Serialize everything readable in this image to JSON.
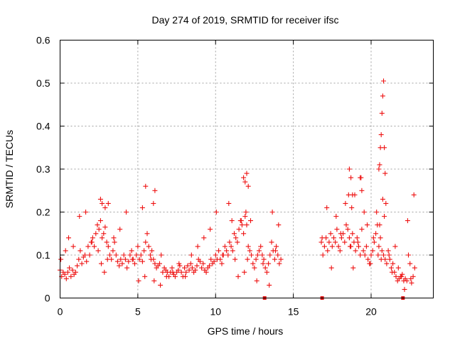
{
  "chart_data": {
    "type": "scatter",
    "title": "Day 274 of 2019, SRMTID for receiver ifsc",
    "xlabel": "GPS time / hours",
    "ylabel": "SRMTID / TECUs",
    "xlim": [
      0,
      24
    ],
    "ylim": [
      0,
      0.6
    ],
    "x_ticks": [
      0,
      5,
      10,
      15,
      20
    ],
    "y_ticks": [
      0,
      0.1,
      0.2,
      0.3,
      0.4,
      0.5,
      0.6
    ],
    "x_tick_labels": [
      "0",
      "5",
      "10",
      "15",
      "20"
    ],
    "y_tick_labels": [
      "0",
      "0.1",
      "0.2",
      "0.3",
      "0.4",
      "0.5",
      "0.6"
    ],
    "grid": true,
    "marker": "+",
    "color": "#ee1111",
    "series": [
      {
        "name": "SRMTID",
        "x": [
          0.0,
          0.1,
          0.2,
          0.3,
          0.4,
          0.5,
          0.6,
          0.7,
          0.8,
          0.9,
          1.0,
          1.1,
          1.2,
          1.3,
          1.4,
          1.5,
          1.6,
          1.7,
          1.8,
          1.9,
          2.0,
          2.1,
          2.2,
          2.3,
          2.4,
          2.5,
          2.6,
          2.7,
          2.8,
          2.9,
          3.0,
          3.1,
          3.2,
          3.3,
          3.4,
          3.5,
          3.6,
          3.7,
          3.8,
          3.9,
          4.0,
          4.1,
          4.2,
          4.3,
          4.4,
          4.5,
          4.6,
          4.7,
          4.8,
          4.9,
          5.0,
          5.1,
          5.2,
          5.3,
          5.4,
          5.5,
          5.6,
          5.7,
          5.8,
          5.9,
          6.0,
          6.1,
          6.2,
          6.3,
          6.4,
          6.5,
          6.6,
          6.7,
          6.8,
          6.9,
          7.0,
          7.1,
          7.2,
          7.3,
          7.4,
          7.5,
          7.6,
          7.7,
          7.8,
          7.9,
          8.0,
          8.1,
          8.2,
          8.3,
          8.4,
          8.5,
          8.6,
          8.7,
          8.8,
          8.9,
          9.0,
          9.1,
          9.2,
          9.3,
          9.4,
          9.5,
          9.6,
          9.7,
          9.8,
          9.9,
          10.0,
          10.1,
          10.2,
          10.3,
          10.4,
          10.5,
          10.6,
          10.7,
          10.8,
          10.9,
          11.0,
          11.1,
          11.2,
          11.3,
          11.4,
          11.5,
          11.6,
          11.7,
          11.8,
          11.9,
          12.0,
          12.1,
          12.2,
          12.3,
          12.4,
          12.5,
          12.6,
          12.7,
          12.8,
          12.9,
          13.0,
          13.1,
          13.2,
          13.3,
          13.4,
          13.5,
          13.6,
          13.7,
          13.8,
          13.9,
          14.0,
          14.1,
          14.2,
          16.8,
          16.9,
          17.0,
          17.1,
          17.2,
          17.3,
          17.4,
          17.5,
          17.6,
          17.7,
          17.8,
          17.9,
          18.0,
          18.1,
          18.2,
          18.3,
          18.4,
          18.5,
          18.6,
          18.7,
          18.8,
          18.9,
          19.0,
          19.1,
          19.2,
          19.3,
          19.4,
          19.5,
          19.6,
          19.7,
          19.8,
          19.9,
          20.0,
          20.1,
          20.2,
          20.3,
          20.4,
          20.5,
          20.6,
          20.7,
          20.8,
          20.9,
          21.0,
          21.1,
          21.2,
          21.3,
          21.4,
          21.5,
          21.6,
          21.7,
          21.8,
          21.9,
          22.0,
          22.1,
          22.2,
          22.3,
          22.4,
          22.5,
          22.6,
          22.7,
          22.8,
          0.05,
          0.35,
          0.55,
          0.85,
          1.25,
          1.65,
          2.05,
          2.45,
          2.65,
          2.85,
          3.05,
          3.45,
          3.85,
          4.25,
          4.65,
          5.05,
          5.45,
          5.85,
          6.05,
          6.45,
          6.85,
          7.25,
          7.65,
          8.05,
          8.45,
          8.85,
          9.25,
          9.65,
          10.05,
          10.45,
          10.85,
          11.05,
          11.25,
          11.45,
          11.65,
          11.85,
          11.95,
          12.05,
          12.25,
          12.65,
          13.05,
          13.45,
          13.65,
          13.85,
          14.05,
          16.85,
          17.15,
          17.45,
          17.75,
          18.05,
          18.35,
          18.55,
          18.65,
          18.75,
          18.85,
          18.95,
          19.15,
          19.35,
          19.55,
          19.75,
          19.95,
          20.15,
          20.35,
          20.45,
          20.55,
          20.65,
          20.75,
          20.85,
          20.95,
          21.15,
          21.35,
          21.55,
          21.75,
          21.95,
          22.15,
          22.35,
          22.55,
          22.75,
          2.6,
          2.7,
          2.9,
          3.1,
          5.3,
          5.5,
          6.0,
          6.1,
          11.8,
          11.9,
          12.0,
          12.1,
          18.6,
          18.7,
          18.8,
          19.3,
          19.4,
          20.5,
          20.55,
          20.6,
          20.65,
          20.7,
          20.75,
          20.8,
          20.85,
          20.9
        ],
        "y": [
          0.065,
          0.05,
          0.06,
          0.055,
          0.045,
          0.06,
          0.07,
          0.05,
          0.065,
          0.055,
          0.06,
          0.075,
          0.09,
          0.11,
          0.08,
          0.095,
          0.1,
          0.085,
          0.12,
          0.1,
          0.13,
          0.14,
          0.12,
          0.15,
          0.17,
          0.16,
          0.18,
          0.14,
          0.15,
          0.165,
          0.13,
          0.12,
          0.1,
          0.09,
          0.11,
          0.13,
          0.1,
          0.085,
          0.075,
          0.09,
          0.08,
          0.1,
          0.09,
          0.07,
          0.085,
          0.1,
          0.11,
          0.09,
          0.08,
          0.1,
          0.12,
          0.09,
          0.1,
          0.085,
          0.11,
          0.13,
          0.15,
          0.12,
          0.1,
          0.11,
          0.09,
          0.08,
          0.07,
          0.075,
          0.08,
          0.1,
          0.06,
          0.07,
          0.065,
          0.06,
          0.05,
          0.06,
          0.07,
          0.055,
          0.05,
          0.06,
          0.065,
          0.075,
          0.06,
          0.05,
          0.07,
          0.06,
          0.075,
          0.065,
          0.08,
          0.07,
          0.06,
          0.065,
          0.075,
          0.09,
          0.085,
          0.07,
          0.08,
          0.065,
          0.06,
          0.07,
          0.075,
          0.09,
          0.08,
          0.085,
          0.1,
          0.09,
          0.11,
          0.09,
          0.08,
          0.1,
          0.12,
          0.11,
          0.1,
          0.13,
          0.12,
          0.11,
          0.15,
          0.14,
          0.13,
          0.16,
          0.18,
          0.17,
          0.15,
          0.19,
          0.17,
          0.12,
          0.11,
          0.1,
          0.08,
          0.07,
          0.09,
          0.1,
          0.11,
          0.12,
          0.1,
          0.09,
          0.07,
          0.06,
          0.08,
          0.1,
          0.13,
          0.11,
          0.09,
          0.12,
          0.1,
          0.08,
          0.09,
          0.13,
          0.1,
          0.12,
          0.14,
          0.11,
          0.13,
          0.15,
          0.12,
          0.14,
          0.13,
          0.16,
          0.12,
          0.11,
          0.14,
          0.15,
          0.13,
          0.17,
          0.16,
          0.14,
          0.12,
          0.15,
          0.13,
          0.11,
          0.14,
          0.12,
          0.1,
          0.16,
          0.11,
          0.1,
          0.12,
          0.09,
          0.08,
          0.1,
          0.11,
          0.13,
          0.15,
          0.17,
          0.12,
          0.14,
          0.11,
          0.1,
          0.09,
          0.08,
          0.11,
          0.09,
          0.07,
          0.08,
          0.06,
          0.05,
          0.04,
          0.045,
          0.05,
          0.055,
          0.04,
          0.045,
          0.04,
          0.1,
          0.08,
          0.035,
          0.05,
          0.07,
          0.09,
          0.11,
          0.14,
          0.12,
          0.19,
          0.2,
          0.13,
          0.11,
          0.08,
          0.06,
          0.09,
          0.14,
          0.16,
          0.2,
          0.09,
          0.04,
          0.05,
          0.09,
          0.04,
          0.03,
          0.05,
          0.06,
          0.08,
          0.05,
          0.1,
          0.12,
          0.14,
          0.16,
          0.2,
          0.1,
          0.22,
          0.18,
          0.09,
          0.05,
          0.18,
          0.06,
          0.2,
          0.09,
          0.18,
          0.04,
          0.08,
          0.03,
          0.2,
          0.11,
          0.17,
          0.14,
          0.21,
          0.07,
          0.19,
          0.15,
          0.22,
          0.24,
          0.12,
          0.21,
          0.07,
          0.24,
          0.13,
          0.28,
          0.2,
          0.17,
          0.08,
          0.14,
          0.2,
          0.1,
          0.17,
          0.09,
          0.23,
          0.19,
          0.22,
          0.1,
          0.06,
          0.12,
          0.07,
          0.05,
          0.02,
          0.18,
          0.045,
          0.24,
          0.23,
          0.22,
          0.21,
          0.22,
          0.21,
          0.26,
          0.22,
          0.25,
          0.28,
          0.27,
          0.29,
          0.26,
          0.3,
          0.28,
          0.24,
          0.28,
          0.25,
          0.3,
          0.31,
          0.35,
          0.38,
          0.43,
          0.47,
          0.505,
          0.35,
          0.29
        ]
      }
    ],
    "data_gap_marks_x": [
      13.15,
      16.85,
      22.05
    ]
  }
}
